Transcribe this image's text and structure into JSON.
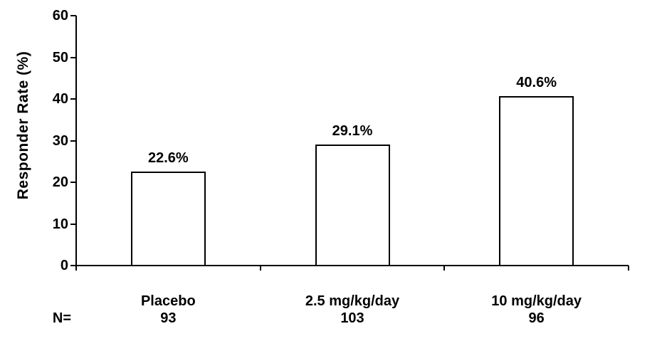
{
  "chart_data": {
    "type": "bar",
    "title": "",
    "ylabel": "Responder Rate (%)",
    "xlabel": "",
    "ylim": [
      0,
      60
    ],
    "yticks": [
      0,
      10,
      20,
      30,
      40,
      50,
      60
    ],
    "categories": [
      "Placebo",
      "2.5 mg/kg/day",
      "10 mg/kg/day"
    ],
    "values": [
      22.6,
      29.1,
      40.6
    ],
    "value_labels": [
      "22.6%",
      "29.1%",
      "40.6%"
    ],
    "n_prefix": "N=",
    "n_values": [
      "93",
      "103",
      "96"
    ],
    "grid": false,
    "legend_position": "none",
    "colors": {
      "bar_fill": "#ffffff",
      "bar_border": "#000000",
      "axis": "#000000",
      "text": "#000000",
      "background": "#ffffff"
    }
  }
}
